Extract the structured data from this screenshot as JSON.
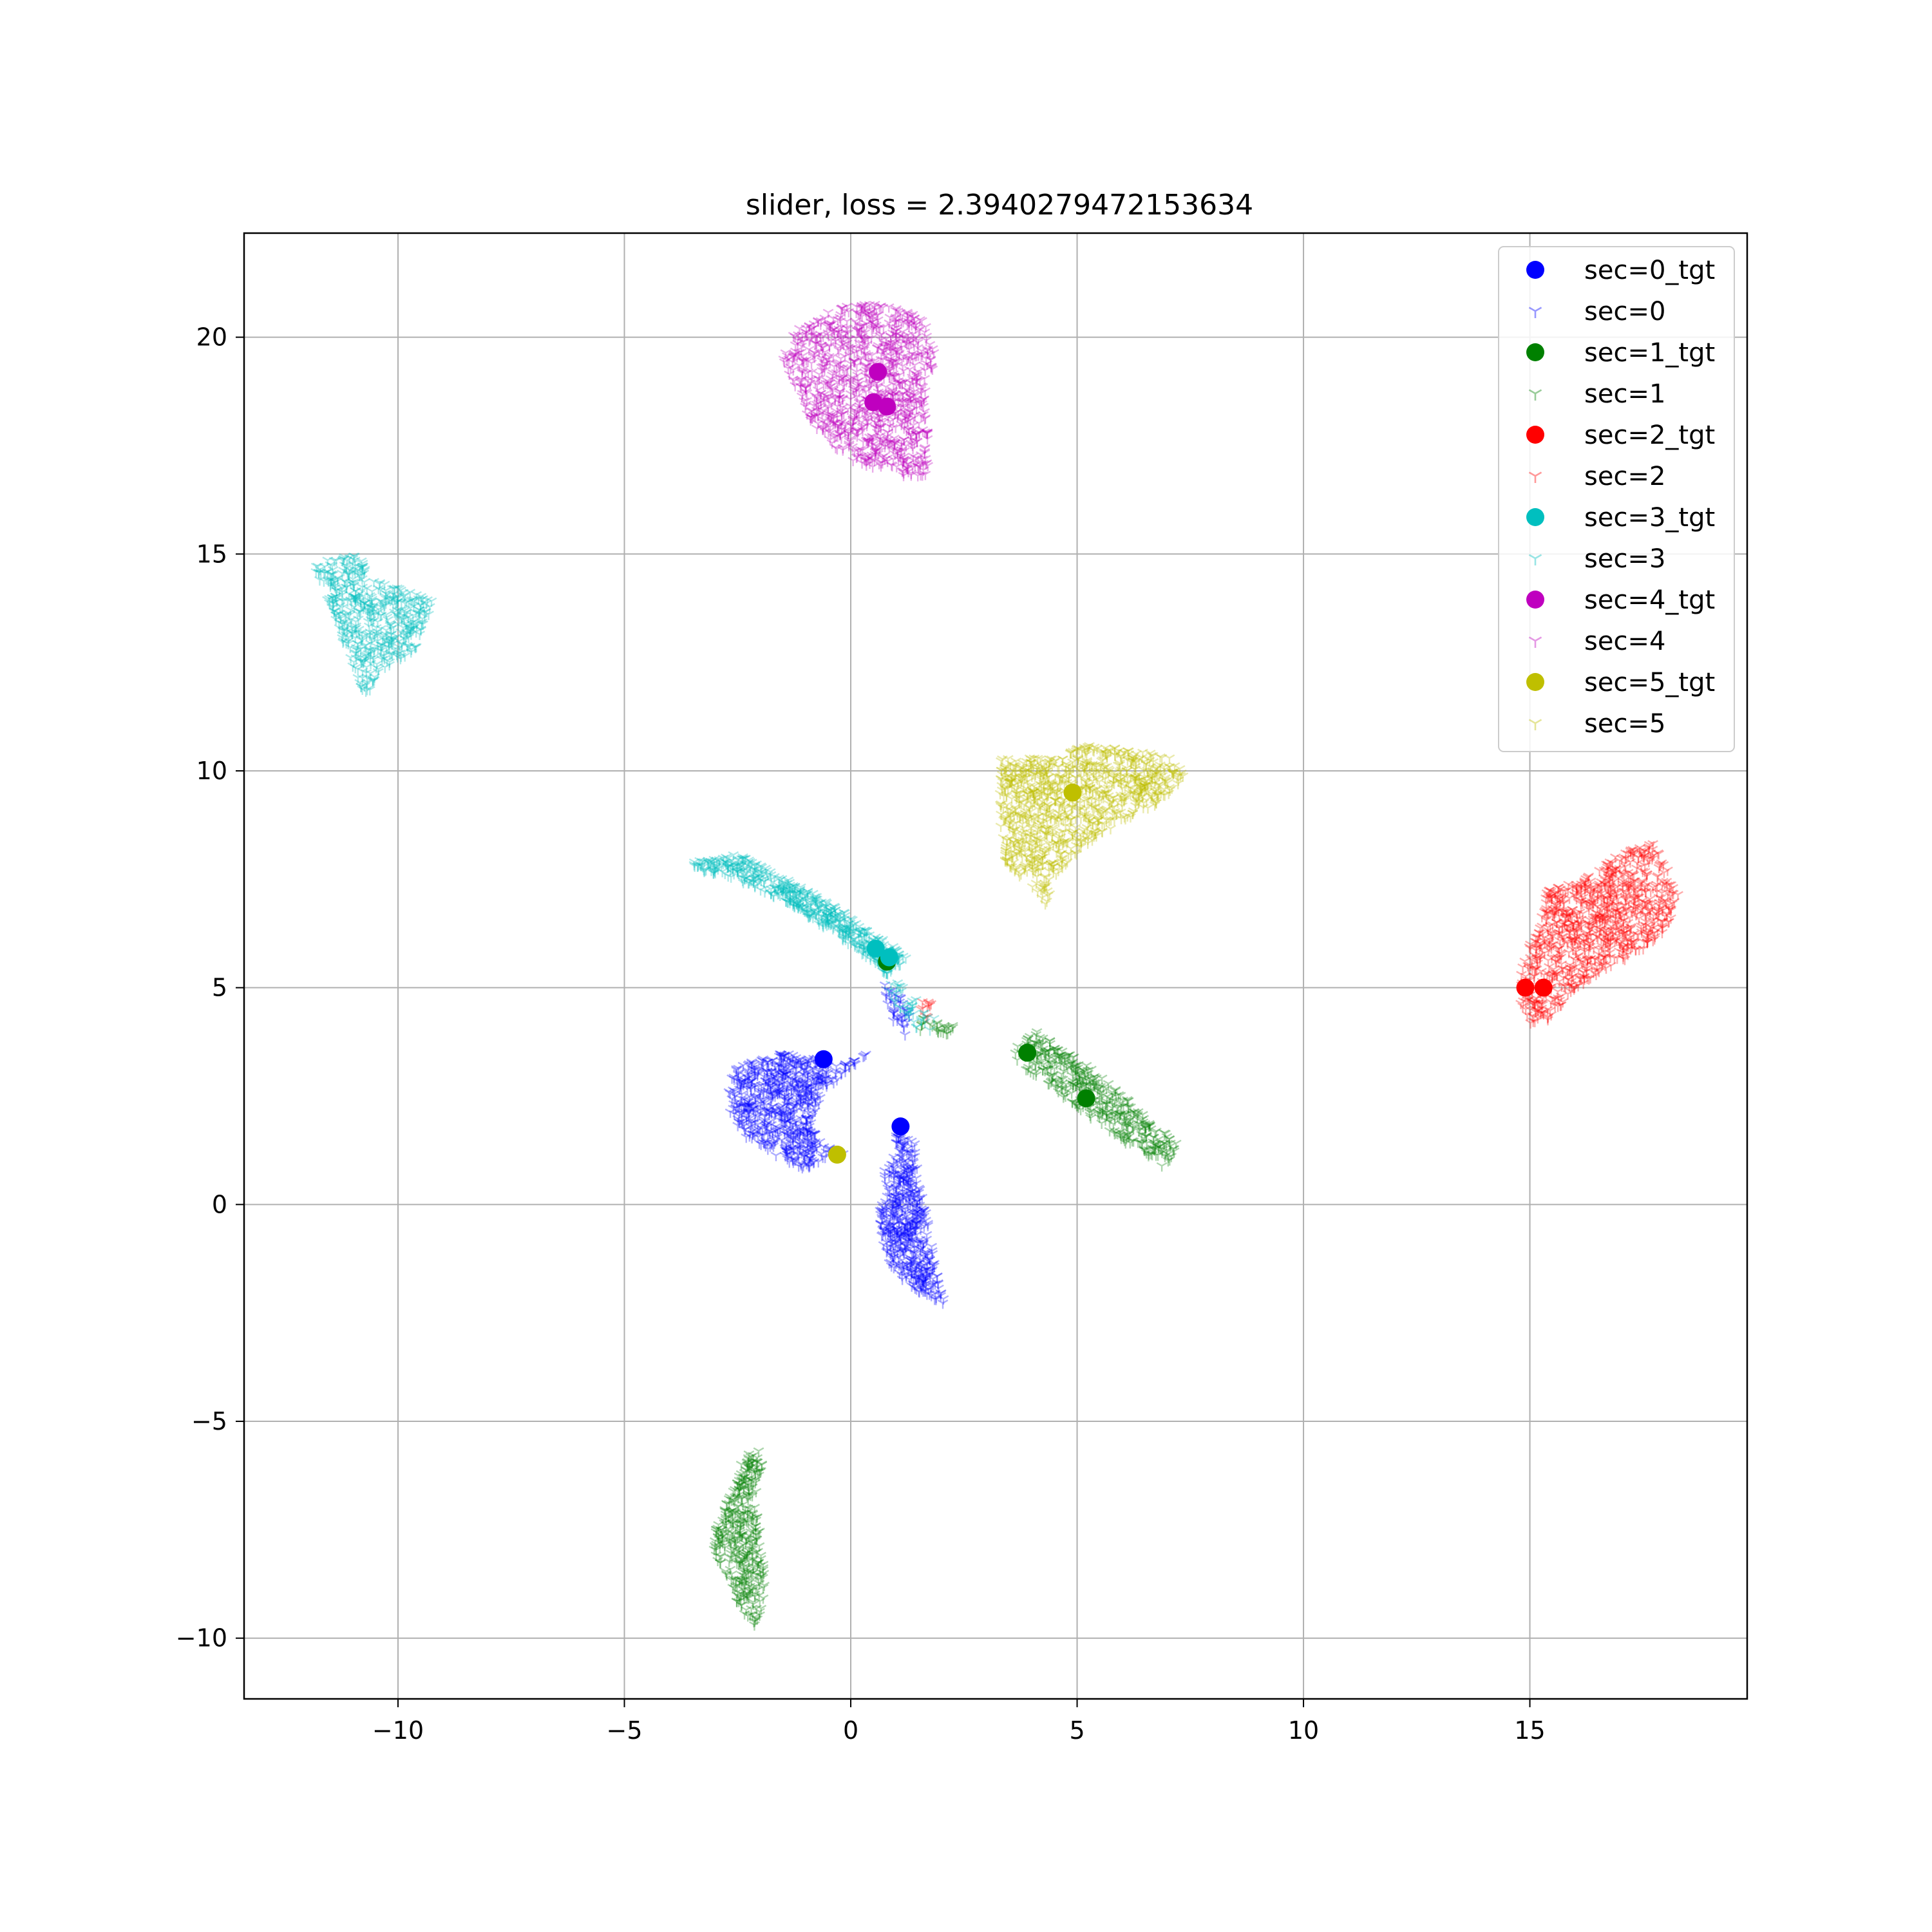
{
  "chart_data": {
    "type": "scatter",
    "title": "slider, loss = 2.3940279472153634",
    "xlabel": "",
    "ylabel": "",
    "xlim": [
      -13.4,
      19.8
    ],
    "ylim": [
      -11.4,
      22.4
    ],
    "xticks": [
      -10,
      -5,
      0,
      5,
      10,
      15
    ],
    "xtick_labels": [
      "−10",
      "−5",
      "0",
      "5",
      "10",
      "15"
    ],
    "yticks": [
      -10,
      -5,
      0,
      5,
      10,
      15,
      20
    ],
    "ytick_labels": [
      "−10",
      "−5",
      "0",
      "5",
      "10",
      "15",
      "20"
    ],
    "grid": true,
    "legend_position": "top-right",
    "series": [
      {
        "name": "sec=0_tgt",
        "kind": "target",
        "color": "#0000ff",
        "points": [
          [
            -0.6,
            3.35
          ],
          [
            1.1,
            1.8
          ]
        ]
      },
      {
        "name": "sec=0",
        "kind": "cloud",
        "color": "#0000ff",
        "clusters": [
          {
            "shape": "poly",
            "poly": [
              [
                -2.5,
                3.2
              ],
              [
                -1.5,
                3.5
              ],
              [
                -0.6,
                3.4
              ],
              [
                -0.3,
                3.2
              ],
              [
                0.4,
                3.5
              ],
              [
                -0.6,
                2.6
              ],
              [
                -0.9,
                1.8
              ],
              [
                -0.6,
                1.4
              ],
              [
                -0.1,
                1.2
              ],
              [
                -1.0,
                0.8
              ],
              [
                -1.8,
                1.2
              ],
              [
                -2.4,
                1.6
              ],
              [
                -2.7,
                2.2
              ],
              [
                -2.7,
                2.8
              ]
            ],
            "n": 700
          },
          {
            "shape": "poly",
            "poly": [
              [
                1.0,
                1.6
              ],
              [
                1.4,
                1.5
              ],
              [
                1.5,
                0.5
              ],
              [
                1.7,
                -0.3
              ],
              [
                1.9,
                -1.6
              ],
              [
                2.1,
                -2.3
              ],
              [
                1.6,
                -2.1
              ],
              [
                1.2,
                -1.8
              ],
              [
                0.8,
                -1.3
              ],
              [
                0.6,
                -0.3
              ],
              [
                0.8,
                0.4
              ],
              [
                0.7,
                0.8
              ],
              [
                1.0,
                1.2
              ]
            ],
            "n": 520
          },
          {
            "shape": "poly",
            "poly": [
              [
                0.7,
                5.1
              ],
              [
                1.0,
                5.0
              ],
              [
                1.3,
                4.4
              ],
              [
                1.2,
                3.8
              ],
              [
                0.9,
                4.3
              ]
            ],
            "n": 40
          }
        ]
      },
      {
        "name": "sec=1_tgt",
        "kind": "target",
        "color": "#008000",
        "points": [
          [
            3.9,
            3.5
          ],
          [
            5.2,
            2.45
          ],
          [
            0.8,
            5.6
          ]
        ]
      },
      {
        "name": "sec=1",
        "kind": "cloud",
        "color": "#008000",
        "clusters": [
          {
            "shape": "poly",
            "poly": [
              [
                3.6,
                3.6
              ],
              [
                4.1,
                4.0
              ],
              [
                5.1,
                3.3
              ],
              [
                6.4,
                2.2
              ],
              [
                7.2,
                1.4
              ],
              [
                7.0,
                0.8
              ],
              [
                6.1,
                1.4
              ],
              [
                5.0,
                2.2
              ],
              [
                4.2,
                2.9
              ],
              [
                3.7,
                3.2
              ]
            ],
            "n": 420
          },
          {
            "shape": "poly",
            "poly": [
              [
                -2.1,
                -5.6
              ],
              [
                -1.9,
                -5.8
              ],
              [
                -2.1,
                -7.0
              ],
              [
                -1.9,
                -8.2
              ],
              [
                -1.9,
                -9.0
              ],
              [
                -2.1,
                -9.9
              ],
              [
                -2.5,
                -9.2
              ],
              [
                -2.8,
                -8.4
              ],
              [
                -3.1,
                -8.0
              ],
              [
                -2.9,
                -7.2
              ],
              [
                -2.5,
                -6.4
              ],
              [
                -2.4,
                -5.9
              ]
            ],
            "n": 380
          },
          {
            "shape": "poly",
            "poly": [
              [
                1.6,
                4.3
              ],
              [
                2.4,
                4.1
              ],
              [
                2.1,
                3.9
              ],
              [
                1.5,
                4.0
              ]
            ],
            "n": 25
          }
        ]
      },
      {
        "name": "sec=2_tgt",
        "kind": "target",
        "color": "#ff0000",
        "points": [
          [
            14.9,
            5.0
          ],
          [
            15.3,
            5.0
          ]
        ]
      },
      {
        "name": "sec=2",
        "kind": "cloud",
        "color": "#ff0000",
        "clusters": [
          {
            "shape": "poly",
            "poly": [
              [
                15.0,
                6.0
              ],
              [
                15.4,
                7.3
              ],
              [
                16.2,
                7.5
              ],
              [
                17.0,
                8.1
              ],
              [
                17.7,
                8.4
              ],
              [
                18.3,
                7.2
              ],
              [
                18.1,
                6.4
              ],
              [
                17.4,
                5.8
              ],
              [
                16.6,
                5.4
              ],
              [
                15.9,
                4.9
              ],
              [
                15.5,
                4.3
              ],
              [
                15.0,
                4.1
              ],
              [
                14.8,
                4.6
              ],
              [
                14.8,
                5.4
              ]
            ],
            "n": 900
          },
          {
            "shape": "poly",
            "poly": [
              [
                1.5,
                4.7
              ],
              [
                1.8,
                4.7
              ],
              [
                1.7,
                4.3
              ],
              [
                1.5,
                4.4
              ]
            ],
            "n": 10
          }
        ]
      },
      {
        "name": "sec=3_tgt",
        "kind": "target",
        "color": "#00bfbf",
        "points": [
          [
            0.55,
            5.9
          ],
          [
            0.85,
            5.7
          ]
        ]
      },
      {
        "name": "sec=3",
        "kind": "cloud",
        "color": "#00bfbf",
        "clusters": [
          {
            "shape": "poly",
            "poly": [
              [
                -11.9,
                14.8
              ],
              [
                -10.9,
                15.0
              ],
              [
                -10.5,
                14.4
              ],
              [
                -9.9,
                14.2
              ],
              [
                -9.2,
                13.9
              ],
              [
                -9.6,
                12.8
              ],
              [
                -10.4,
                12.3
              ],
              [
                -10.7,
                11.7
              ],
              [
                -11.1,
                12.5
              ],
              [
                -11.3,
                13.3
              ]
            ],
            "n": 500
          },
          {
            "shape": "poly",
            "poly": [
              [
                -3.5,
                7.9
              ],
              [
                -2.5,
                8.1
              ],
              [
                -1.6,
                7.6
              ],
              [
                -0.5,
                7.0
              ],
              [
                0.3,
                6.4
              ],
              [
                1.3,
                5.7
              ],
              [
                0.8,
                5.3
              ],
              [
                0.1,
                5.9
              ],
              [
                -0.9,
                6.6
              ],
              [
                -1.9,
                7.2
              ],
              [
                -2.8,
                7.6
              ],
              [
                -3.4,
                7.7
              ]
            ],
            "n": 520
          },
          {
            "shape": "poly",
            "poly": [
              [
                0.7,
                5.3
              ],
              [
                1.1,
                5.1
              ],
              [
                1.6,
                4.6
              ],
              [
                2.0,
                4.1
              ],
              [
                1.5,
                3.9
              ],
              [
                1.1,
                4.5
              ],
              [
                0.8,
                4.9
              ]
            ],
            "n": 40
          }
        ]
      },
      {
        "name": "sec=4_tgt",
        "kind": "target",
        "color": "#bf00bf",
        "points": [
          [
            0.6,
            19.2
          ],
          [
            0.5,
            18.5
          ],
          [
            0.8,
            18.4
          ]
        ]
      },
      {
        "name": "sec=4",
        "kind": "cloud",
        "color": "#bf00bf",
        "clusters": [
          {
            "shape": "poly",
            "poly": [
              [
                -1.5,
                19.5
              ],
              [
                -1.2,
                20.2
              ],
              [
                -0.3,
                20.7
              ],
              [
                0.7,
                20.8
              ],
              [
                1.6,
                20.5
              ],
              [
                1.9,
                19.6
              ],
              [
                1.7,
                18.5
              ],
              [
                1.7,
                17.4
              ],
              [
                1.8,
                16.8
              ],
              [
                1.1,
                16.8
              ],
              [
                0.1,
                17.1
              ],
              [
                -0.7,
                17.7
              ],
              [
                -1.1,
                18.5
              ]
            ],
            "n": 1000
          }
        ]
      },
      {
        "name": "sec=5_tgt",
        "kind": "target",
        "color": "#bfbf00",
        "points": [
          [
            -0.3,
            1.15
          ],
          [
            4.9,
            9.5
          ]
        ]
      },
      {
        "name": "sec=5",
        "kind": "cloud",
        "color": "#bfbf00",
        "clusters": [
          {
            "shape": "poly",
            "poly": [
              [
                3.3,
                10.3
              ],
              [
                4.6,
                10.3
              ],
              [
                5.1,
                10.6
              ],
              [
                6.2,
                10.5
              ],
              [
                7.1,
                10.3
              ],
              [
                7.4,
                9.9
              ],
              [
                6.9,
                9.3
              ],
              [
                6.1,
                8.9
              ],
              [
                5.2,
                8.3
              ],
              [
                4.6,
                7.6
              ],
              [
                4.3,
                6.9
              ],
              [
                3.9,
                7.4
              ],
              [
                3.4,
                7.9
              ],
              [
                3.3,
                8.8
              ]
            ],
            "n": 950
          }
        ]
      }
    ]
  }
}
